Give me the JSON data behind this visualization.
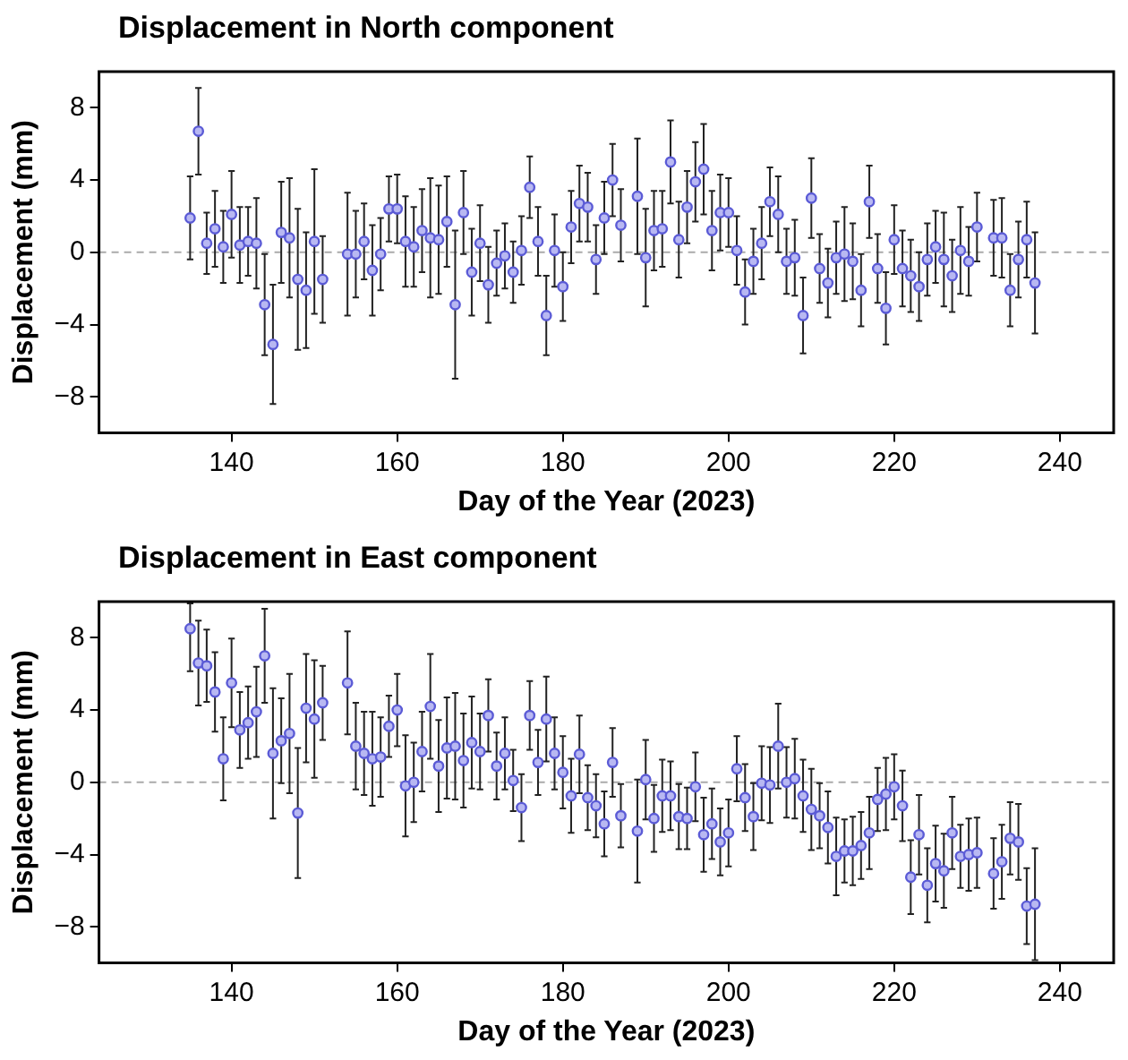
{
  "chart_data": [
    {
      "type": "scatter",
      "title": "Displacement in North component",
      "xlabel": "Day of the Year (2023)",
      "ylabel": "Displacement (mm)",
      "xlim": [
        124,
        246.5
      ],
      "xticks": [
        140,
        160,
        180,
        200,
        220,
        240
      ],
      "ylim": [
        -10,
        10
      ],
      "yticks": [
        -8,
        -4,
        0,
        4,
        8
      ],
      "grid": false,
      "legend": false,
      "marker": "circle",
      "ref_lines": [
        {
          "axis": "y",
          "value": 0,
          "color": "#aaaaaa",
          "line_style": "dashed"
        }
      ],
      "series": [
        {
          "color": "#5b5bd6",
          "x": [
            135,
            136,
            137,
            138,
            139,
            140,
            141,
            142,
            143,
            144,
            145,
            146,
            147,
            148,
            149,
            150,
            151,
            154,
            155,
            156,
            157,
            158,
            159,
            160,
            161,
            162,
            163,
            164,
            165,
            166,
            167,
            168,
            169,
            170,
            171,
            172,
            173,
            174,
            175,
            176,
            177,
            178,
            179,
            180,
            181,
            182,
            183,
            184,
            185,
            186,
            187,
            189,
            190,
            191,
            192,
            193,
            194,
            195,
            196,
            197,
            198,
            199,
            200,
            201,
            202,
            203,
            204,
            205,
            206,
            207,
            208,
            209,
            210,
            211,
            212,
            213,
            214,
            215,
            216,
            217,
            218,
            219,
            220,
            221,
            222,
            223,
            224,
            225,
            226,
            227,
            228,
            229,
            230,
            232,
            233,
            234,
            235,
            236,
            237
          ],
          "values": [
            1.9,
            6.7,
            0.5,
            1.3,
            0.3,
            2.1,
            0.4,
            0.6,
            0.5,
            -2.9,
            -5.1,
            1.1,
            0.8,
            -1.5,
            -2.1,
            0.6,
            -1.5,
            -0.1,
            -0.1,
            0.6,
            -1.0,
            -0.1,
            2.4,
            2.4,
            0.6,
            0.3,
            1.2,
            0.8,
            0.7,
            1.7,
            -2.9,
            2.2,
            -1.1,
            0.5,
            -1.8,
            -0.6,
            -0.2,
            -1.1,
            0.1,
            3.6,
            0.6,
            -3.5,
            0.1,
            -1.9,
            1.4,
            2.7,
            2.5,
            -0.4,
            1.9,
            4.0,
            1.5,
            3.1,
            -0.3,
            1.2,
            1.3,
            5.0,
            0.7,
            2.5,
            3.9,
            4.6,
            1.2,
            2.2,
            2.2,
            0.1,
            -2.2,
            -0.5,
            0.5,
            2.8,
            2.1,
            -0.5,
            -0.3,
            -3.5,
            3.0,
            -0.9,
            -1.7,
            -0.3,
            -0.1,
            -0.5,
            -2.1,
            2.8,
            -0.9,
            -3.1,
            0.7,
            -0.9,
            -1.3,
            -1.9,
            -0.4,
            0.3,
            -0.4,
            -1.3,
            0.1,
            -0.5,
            1.4,
            0.8,
            0.8,
            -2.1,
            -0.4,
            0.7,
            -1.7
          ],
          "errors": [
            2.3,
            2.4,
            1.7,
            2.1,
            2.0,
            2.4,
            2.1,
            1.9,
            2.5,
            2.8,
            3.3,
            2.8,
            3.3,
            3.9,
            3.2,
            4.0,
            2.4,
            3.4,
            2.4,
            2.1,
            2.5,
            2.0,
            1.8,
            1.9,
            2.5,
            2.2,
            2.3,
            3.3,
            3.0,
            2.5,
            4.1,
            2.3,
            2.4,
            2.1,
            2.1,
            1.8,
            1.8,
            1.7,
            1.9,
            1.7,
            1.9,
            2.2,
            2.0,
            1.9,
            2.0,
            2.1,
            1.9,
            1.9,
            2.0,
            2.0,
            2.0,
            3.2,
            2.7,
            2.2,
            2.1,
            2.3,
            2.1,
            2.0,
            2.2,
            2.5,
            2.2,
            2.1,
            1.9,
            1.9,
            1.8,
            1.8,
            2.0,
            1.9,
            2.1,
            1.8,
            2.1,
            2.1,
            2.2,
            1.9,
            1.9,
            2.0,
            2.6,
            2.1,
            2.0,
            2.0,
            1.9,
            2.0,
            1.9,
            2.1,
            2.0,
            1.9,
            2.0,
            2.0,
            2.6,
            2.0,
            2.4,
            1.9,
            1.9,
            2.1,
            2.2,
            2.0,
            2.1,
            2.1,
            2.8
          ]
        }
      ]
    },
    {
      "type": "scatter",
      "title": "Displacement in East component",
      "xlabel": "Day of the Year (2023)",
      "ylabel": "Displacement (mm)",
      "xlim": [
        124,
        246.5
      ],
      "xticks": [
        140,
        160,
        180,
        200,
        220,
        240
      ],
      "ylim": [
        -10,
        10
      ],
      "yticks": [
        -8,
        -4,
        0,
        4,
        8
      ],
      "grid": false,
      "legend": false,
      "marker": "circle",
      "ref_lines": [
        {
          "axis": "y",
          "value": 0,
          "color": "#aaaaaa",
          "line_style": "dashed"
        }
      ],
      "series": [
        {
          "color": "#5b5bd6",
          "x": [
            135,
            136,
            137,
            138,
            139,
            140,
            141,
            142,
            143,
            144,
            145,
            146,
            147,
            148,
            149,
            150,
            151,
            154,
            155,
            156,
            157,
            158,
            159,
            160,
            161,
            162,
            163,
            164,
            165,
            166,
            167,
            168,
            169,
            170,
            171,
            172,
            173,
            174,
            175,
            176,
            177,
            178,
            179,
            180,
            181,
            182,
            183,
            184,
            185,
            186,
            187,
            189,
            190,
            191,
            192,
            193,
            194,
            195,
            196,
            197,
            198,
            199,
            200,
            201,
            202,
            203,
            204,
            205,
            206,
            207,
            208,
            209,
            210,
            211,
            212,
            213,
            214,
            215,
            216,
            217,
            218,
            219,
            220,
            221,
            222,
            223,
            224,
            225,
            226,
            227,
            228,
            229,
            230,
            232,
            233,
            234,
            235,
            236,
            237
          ],
          "values": [
            8.5,
            6.6,
            6.45,
            5.0,
            1.3,
            5.5,
            2.9,
            3.3,
            3.9,
            7.0,
            1.6,
            2.3,
            2.7,
            -1.7,
            4.1,
            3.5,
            4.4,
            5.5,
            2.0,
            1.6,
            1.3,
            1.4,
            3.1,
            4.0,
            -0.2,
            0.0,
            1.7,
            4.2,
            0.9,
            1.9,
            2.0,
            1.2,
            2.2,
            1.7,
            3.7,
            0.9,
            1.6,
            0.1,
            -1.4,
            3.7,
            1.1,
            3.5,
            1.6,
            0.55,
            -0.75,
            1.55,
            -0.85,
            -1.3,
            -2.3,
            1.1,
            -1.85,
            -2.7,
            0.15,
            -2.0,
            -0.75,
            -0.75,
            -1.9,
            -2.0,
            -0.25,
            -2.9,
            -2.3,
            -3.3,
            -2.8,
            0.75,
            -0.85,
            -1.9,
            -0.05,
            -0.15,
            2.0,
            0.0,
            0.2,
            -0.75,
            -1.5,
            -1.85,
            -2.5,
            -4.1,
            -3.8,
            -3.8,
            -3.5,
            -2.8,
            -0.95,
            -0.65,
            -0.25,
            -1.3,
            -5.25,
            -2.9,
            -5.7,
            -4.5,
            -4.9,
            -2.8,
            -4.1,
            -4.0,
            -3.9,
            -5.05,
            -4.4,
            -3.1,
            -3.3,
            -6.85,
            -6.75
          ],
          "errors": [
            [
              6.15,
              9.9
            ],
            2.35,
            2.0,
            2.2,
            2.3,
            2.45,
            2.1,
            2.0,
            2.5,
            2.6,
            3.6,
            2.35,
            3.3,
            3.6,
            3.0,
            3.25,
            2.05,
            2.85,
            2.4,
            2.3,
            2.6,
            2.2,
            1.7,
            2.0,
            2.8,
            2.2,
            2.2,
            2.9,
            2.55,
            2.8,
            2.95,
            2.6,
            2.55,
            2.1,
            2.0,
            1.85,
            2.0,
            1.7,
            1.85,
            1.9,
            1.8,
            2.35,
            2.0,
            2.0,
            2.05,
            2.15,
            1.8,
            1.75,
            1.8,
            1.9,
            1.75,
            2.85,
            2.2,
            1.85,
            2.0,
            1.9,
            1.8,
            1.7,
            1.9,
            2.05,
            1.95,
            1.85,
            1.85,
            1.8,
            1.85,
            1.85,
            2.05,
            2.1,
            2.35,
            1.95,
            2.2,
            2.0,
            2.25,
            1.8,
            2.0,
            2.15,
            1.75,
            1.9,
            1.85,
            2.0,
            1.75,
            2.0,
            1.8,
            1.95,
            2.05,
            2.2,
            2.05,
            2.1,
            2.05,
            2.0,
            1.75,
            2.0,
            1.95,
            1.95,
            2.05,
            2.0,
            2.1,
            2.1,
            3.1
          ]
        }
      ]
    }
  ]
}
